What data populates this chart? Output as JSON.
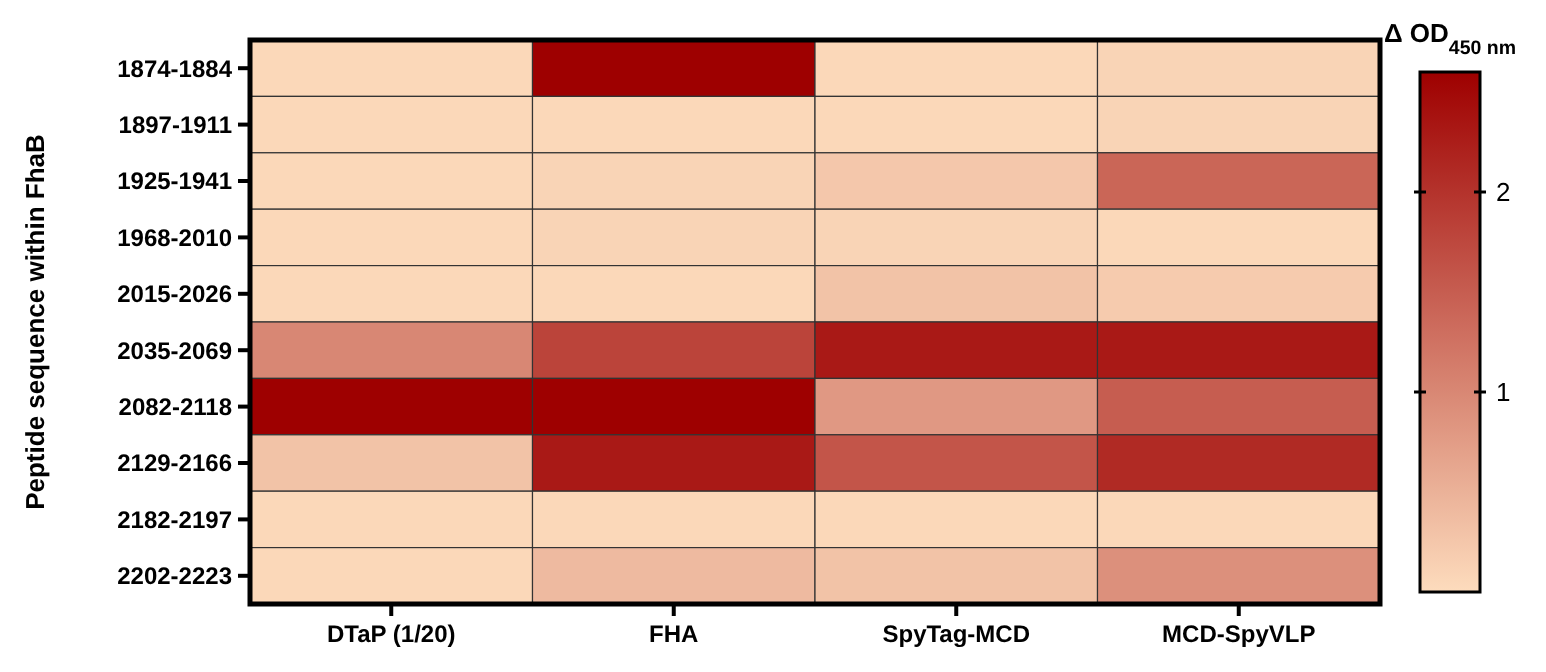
{
  "chart_data": {
    "type": "heatmap",
    "ylabel": "Peptide sequence within FhaB",
    "clabel": "Δ OD$_{450 nm}$",
    "categories": [
      "DTaP (1/20)",
      "FHA",
      "SpyTag-MCD",
      "MCD-SpyVLP"
    ],
    "y_categories": [
      "1874-1884",
      "1897-1911",
      "1925-1941",
      "1968-2010",
      "2015-2026",
      "2035-2069",
      "2082-2118",
      "2129-2166",
      "2182-2197",
      "2202-2223"
    ],
    "cells": [
      [
        0.05,
        2.6,
        0.05,
        0.1
      ],
      [
        0.05,
        0.05,
        0.05,
        0.1
      ],
      [
        0.05,
        0.1,
        0.25,
        1.4
      ],
      [
        0.05,
        0.1,
        0.1,
        0.05
      ],
      [
        0.05,
        0.05,
        0.3,
        0.2
      ],
      [
        1.0,
        1.8,
        2.3,
        2.3
      ],
      [
        2.6,
        2.6,
        0.8,
        1.5
      ],
      [
        0.3,
        2.3,
        1.6,
        2.1
      ],
      [
        0.05,
        0.05,
        0.05,
        0.05
      ],
      [
        0.05,
        0.4,
        0.3,
        0.9
      ]
    ],
    "clim": [
      0,
      2.6
    ],
    "cticks": [
      1,
      2
    ],
    "colors": [
      "#fddcbd",
      "#9e0000"
    ]
  }
}
